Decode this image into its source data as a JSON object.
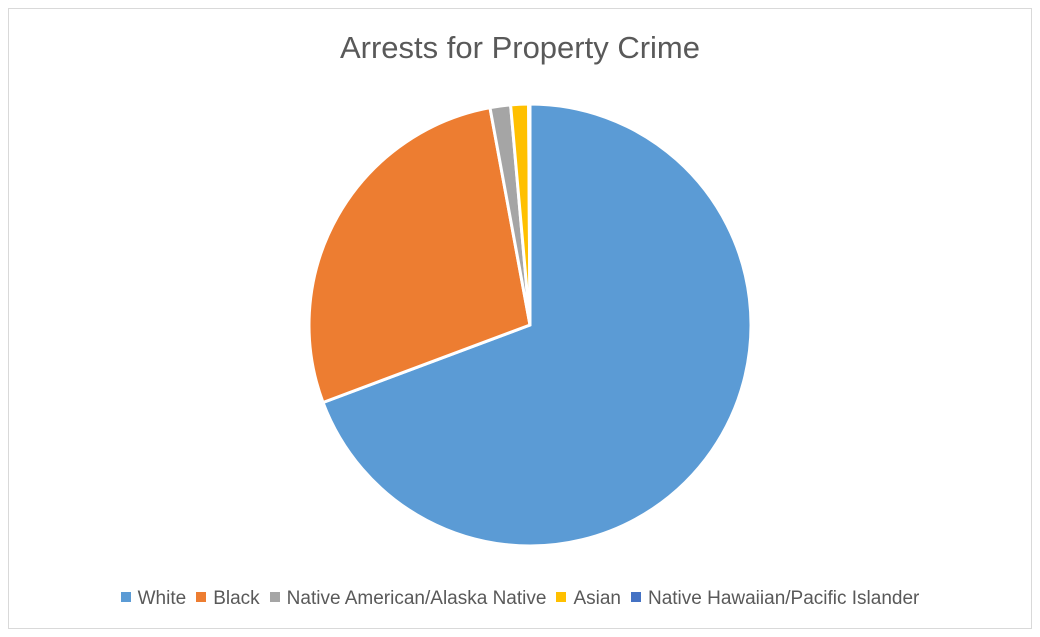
{
  "chart_data": {
    "type": "pie",
    "title": "Arrests for Property Crime",
    "categories": [
      "White",
      "Black",
      "Native American/Alaska Native",
      "Asian",
      "Native Hawaiian/Pacific Islander"
    ],
    "values": [
      69.3,
      27.8,
      1.5,
      1.3,
      0.1
    ],
    "colors": [
      "#5b9bd5",
      "#ed7d31",
      "#a5a5a5",
      "#ffc000",
      "#4472c4"
    ],
    "legend_position": "bottom",
    "start_angle": "12 o'clock, clockwise"
  }
}
